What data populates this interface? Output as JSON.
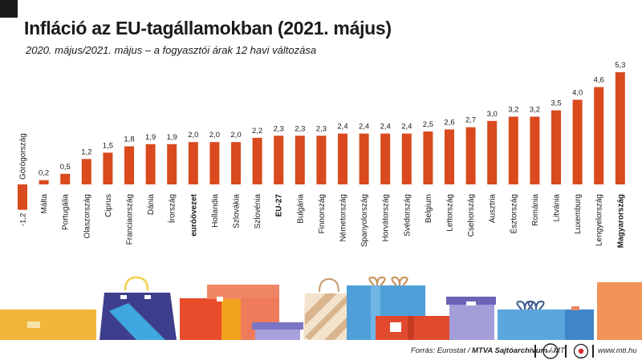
{
  "header": {
    "title": "Infláció az EU-tagállamokban (2021. május)",
    "subtitle": "2020. május/2021. május – a fogyasztói árak 12 havi változása"
  },
  "footer": {
    "source_prefix": "Forrás: Eurostat / ",
    "source_bold": "MTVA Sajtóarchívum",
    "source_suffix": " / MTI",
    "website": "www.mti.hu",
    "logo_mtva": "MTVA",
    "logo_mti": "MTI"
  },
  "chart_data": {
    "type": "bar",
    "title": "Infláció az EU-tagállamokban (2021. május)",
    "subtitle": "2020. május/2021. május – a fogyasztói árak 12 havi változása",
    "unit": "%",
    "bar_color": "#d94a1e",
    "categories": [
      "Görögország",
      "Málta",
      "Portugália",
      "Olaszország",
      "Ciprus",
      "Franciaország",
      "Dánia",
      "Írország",
      "euróövezet",
      "Hollandia",
      "Szlovákia",
      "Szlovénia",
      "EU-27",
      "Bulgária",
      "Finnország",
      "Németország",
      "Spanyolország",
      "Horvátország",
      "Svédország",
      "Belgium",
      "Lettország",
      "Csehország",
      "Ausztria",
      "Észtország",
      "Románia",
      "Litvánia",
      "Luxemburg",
      "Lengyelország",
      "Magyarország"
    ],
    "labels": [
      "-1,2",
      "0,2",
      "0,5",
      "1,2",
      "1,5",
      "1,8",
      "1,9",
      "1,9",
      "2,0",
      "2,0",
      "2,0",
      "2,2",
      "2,3",
      "2,3",
      "2,3",
      "2,4",
      "2,4",
      "2,4",
      "2,4",
      "2,5",
      "2,6",
      "2,7",
      "3,0",
      "3,2",
      "3,2",
      "3,5",
      "4,0",
      "4,6",
      "5,3"
    ],
    "values": [
      -1.2,
      0.2,
      0.5,
      1.2,
      1.5,
      1.8,
      1.9,
      1.9,
      2.0,
      2.0,
      2.0,
      2.2,
      2.3,
      2.3,
      2.3,
      2.4,
      2.4,
      2.4,
      2.4,
      2.5,
      2.6,
      2.7,
      3.0,
      3.2,
      3.2,
      3.5,
      4.0,
      4.6,
      5.3
    ],
    "highlighted": [
      "euróövezet",
      "EU-27",
      "Magyarország"
    ],
    "xlabel": "",
    "ylabel": "",
    "ylim": [
      -1.2,
      5.3
    ],
    "grid": false,
    "legend": "none"
  }
}
